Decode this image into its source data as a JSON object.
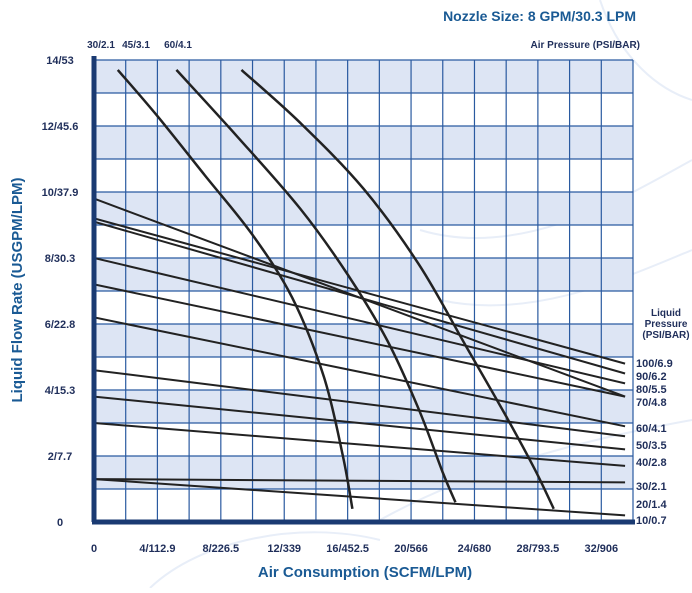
{
  "chart_data": {
    "type": "line",
    "title": "Nozzle Size: 8 GPM/30.3 LPM",
    "xlabel": "Air Consumption (SCFM/LPM)",
    "ylabel": "Liquid Flow Rate (USGPM/LPM)",
    "xlim": [
      0,
      34
    ],
    "ylim": [
      0,
      14
    ],
    "x_ticks": [
      {
        "value": 0,
        "label": "0"
      },
      {
        "value": 4,
        "label": "4/112.9"
      },
      {
        "value": 8,
        "label": "8/226.5"
      },
      {
        "value": 12,
        "label": "12/339"
      },
      {
        "value": 16,
        "label": "16/452.5"
      },
      {
        "value": 20,
        "label": "20/566"
      },
      {
        "value": 24,
        "label": "24/680"
      },
      {
        "value": 28,
        "label": "28/793.5"
      },
      {
        "value": 32,
        "label": "32/906"
      }
    ],
    "y_ticks": [
      {
        "value": 0,
        "label": "0"
      },
      {
        "value": 2,
        "label": "2/7.7"
      },
      {
        "value": 4,
        "label": "4/15.3"
      },
      {
        "value": 6,
        "label": "6/22.8"
      },
      {
        "value": 8,
        "label": "8/30.3"
      },
      {
        "value": 10,
        "label": "10/37.9"
      },
      {
        "value": 12,
        "label": "12/45.6"
      },
      {
        "value": 14,
        "label": "14/53"
      }
    ],
    "air_pressure_heading": "Air Pressure (PSI/BAR)",
    "liquid_pressure_heading": [
      "Liquid",
      "Pressure",
      "(PSI/BAR)"
    ],
    "air_pressure_curves": [
      {
        "name": "30/2.1",
        "points": [
          [
            1.5,
            13.7
          ],
          [
            4,
            12.3
          ],
          [
            7,
            10.5
          ],
          [
            10,
            8.7
          ],
          [
            12.5,
            6.8
          ],
          [
            14.5,
            4.4
          ],
          [
            15.7,
            2.0
          ],
          [
            16.3,
            0.4
          ]
        ]
      },
      {
        "name": "45/3.1",
        "points": [
          [
            5.2,
            13.7
          ],
          [
            9,
            11.7
          ],
          [
            13,
            9.5
          ],
          [
            16,
            7.5
          ],
          [
            18.5,
            5.5
          ],
          [
            20.5,
            3.4
          ],
          [
            22,
            1.5
          ],
          [
            22.8,
            0.6
          ]
        ]
      },
      {
        "name": "60/4.1",
        "points": [
          [
            9.3,
            13.7
          ],
          [
            13,
            12.1
          ],
          [
            17,
            10.1
          ],
          [
            20.5,
            7.8
          ],
          [
            23.5,
            5.3
          ],
          [
            26,
            3.2
          ],
          [
            27.8,
            1.6
          ],
          [
            29,
            0.4
          ]
        ]
      }
    ],
    "liquid_pressure_lines": [
      {
        "name": "100/6.9",
        "points": [
          [
            0,
            9.2
          ],
          [
            33.5,
            4.8
          ]
        ]
      },
      {
        "name": "90/6.2",
        "points": [
          [
            0,
            9.1
          ],
          [
            33.5,
            4.5
          ]
        ]
      },
      {
        "name": "80/5.5",
        "points": [
          [
            0,
            8.0
          ],
          [
            33.5,
            4.2
          ]
        ]
      },
      {
        "name": "70/4.8",
        "points": [
          [
            0,
            7.2
          ],
          [
            33.5,
            3.8
          ]
        ]
      },
      {
        "name": "60/4.1",
        "points": [
          [
            0,
            6.2
          ],
          [
            33.5,
            2.9
          ]
        ]
      },
      {
        "name": "50/3.5",
        "points": [
          [
            0,
            4.6
          ],
          [
            33.5,
            2.6
          ]
        ]
      },
      {
        "name": "40/2.8",
        "points": [
          [
            0,
            3.8
          ],
          [
            33.5,
            2.2
          ]
        ]
      },
      {
        "name": "30/2.1",
        "points": [
          [
            0,
            3.0
          ],
          [
            33.5,
            1.7
          ]
        ]
      },
      {
        "name": "20/1.4",
        "points": [
          [
            0,
            1.3
          ],
          [
            33.5,
            1.2
          ]
        ]
      },
      {
        "name": "10/0.7",
        "points": [
          [
            0,
            1.3
          ],
          [
            33.5,
            0.2
          ]
        ]
      }
    ],
    "top_line": {
      "points": [
        [
          0,
          9.8
        ],
        [
          33.5,
          3.8
        ]
      ]
    },
    "colors": {
      "frame": "#1a3a72",
      "grid": "#2a5aa0",
      "band": "#dde5f4",
      "curve": "#222222",
      "label": "#1a5a94"
    },
    "grid": true,
    "legend": "right"
  }
}
